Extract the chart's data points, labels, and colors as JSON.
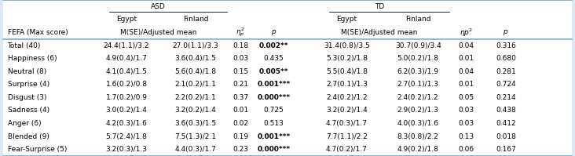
{
  "bg_color": "#dce9f5",
  "table_bg": "#ffffff",
  "rows": [
    [
      "Total (40)",
      "24.4(1.1)/3.2",
      "27.0(1.1)/3.3",
      "0.18",
      "0.002**",
      "31.4(0.8)/3.5",
      "30.7(0.9)/3.4",
      "0.04",
      "0.316"
    ],
    [
      "Happiness (6)",
      "4.9(0.4)/1.7",
      "3.6(0.4)/1.5",
      "0.03",
      "0.435",
      "5.3(0.2)/1.8",
      "5.0(0.2)/1.8",
      "0.01",
      "0.680"
    ],
    [
      "Neutral (8)",
      "4.1(0.4)/1.5",
      "5.6(0.4)/1.8",
      "0.15",
      "0.005**",
      "5.5(0.4)/1.8",
      "6.2(0.3)/1.9",
      "0.04",
      "0.281"
    ],
    [
      "Surprise (4)",
      "1.6(0.2)/0.8",
      "2.1(0.2)/1.1",
      "0.21",
      "0.001***",
      "2.7(0.1)/1.3",
      "2.7(0.1)/1.3",
      "0.01",
      "0.724"
    ],
    [
      "Disgust (3)",
      "1.7(0.2)/0.9",
      "2.2(0.2)/1.1",
      "0.37",
      "0.000***",
      "2.4(0.2)/1.2",
      "2.4(0.2)/1.2",
      "0.05",
      "0.214"
    ],
    [
      "Sadness (4)",
      "3.0(0.2)/1.4",
      "3.2(0.2)/1.4",
      "0.01",
      "0.725",
      "3.2(0.2)/1.4",
      "2.9(0.2)/1.3",
      "0.03",
      "0.438"
    ],
    [
      "Anger (6)",
      "4.2(0.3)/1.6",
      "3.6(0.3)/1.5",
      "0.02",
      "0.513",
      "4.7(0.3)/1.7",
      "4.0(0.3)/1.6",
      "0.03",
      "0.412"
    ],
    [
      "Blended (9)",
      "5.7(2.4)/1.8",
      "7.5(1.3)/2.1",
      "0.19",
      "0.001***",
      "7.7(1.1)/2.2",
      "8.3(0.8)/2.2",
      "0.13",
      "0.018"
    ],
    [
      "Fear-Surprise (5)",
      "3.2(0.3)/1.3",
      "4.4(0.3)/1.7",
      "0.23",
      "0.000***",
      "4.7(0.2)/1.7",
      "4.9(0.2)/1.8",
      "0.06",
      "0.167"
    ]
  ],
  "bold_p_asd": [
    true,
    false,
    true,
    true,
    true,
    false,
    false,
    true,
    true
  ],
  "bold_p_td": [
    false,
    false,
    false,
    false,
    false,
    false,
    false,
    false,
    false
  ],
  "line_color": "#7bafd4",
  "fs": 6.5
}
